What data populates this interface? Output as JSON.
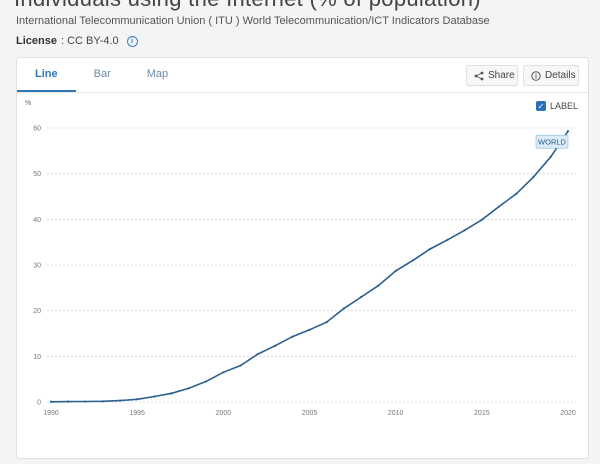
{
  "page": {
    "title": "Individuals using the Internet (% of population)",
    "source": "International Telecommunication Union ( ITU ) World Telecommunication/ICT Indicators Database",
    "license_label": "License",
    "license_value": " : CC BY-4.0"
  },
  "tabs": [
    {
      "label": "Line",
      "active": true
    },
    {
      "label": "Bar",
      "active": false
    },
    {
      "label": "Map",
      "active": false
    }
  ],
  "toolbar": {
    "share_label": "Share",
    "details_label": "Details",
    "label_toggle": "LABEL",
    "label_checked": true
  },
  "icons": {
    "share": "share-icon",
    "details": "info-icon",
    "license_info": "info-icon"
  },
  "colors": {
    "accent": "#2f78b6",
    "line": "#2a5f8f",
    "label_bg": "#d9ecf7"
  },
  "chart_data": {
    "type": "line",
    "ylabel": "%",
    "ylim": [
      0,
      60
    ],
    "xlim": [
      1990,
      2020
    ],
    "yticks": [
      0,
      10,
      20,
      30,
      40,
      50,
      60
    ],
    "xticks": [
      1990,
      1995,
      2000,
      2005,
      2010,
      2015,
      2020
    ],
    "grid": true,
    "series": [
      {
        "name": "WORLD",
        "label_shown": true,
        "x": [
          1990,
          1991,
          1992,
          1993,
          1994,
          1995,
          1996,
          1997,
          1998,
          1999,
          2000,
          2001,
          2002,
          2003,
          2004,
          2005,
          2006,
          2007,
          2008,
          2009,
          2010,
          2011,
          2012,
          2013,
          2014,
          2015,
          2016,
          2017,
          2018,
          2019,
          2020
        ],
        "values": [
          0.05,
          0.08,
          0.1,
          0.15,
          0.3,
          0.6,
          1.2,
          1.9,
          3.0,
          4.5,
          6.5,
          8.0,
          10.5,
          12.3,
          14.3,
          15.8,
          17.5,
          20.5,
          23.0,
          25.5,
          28.7,
          31.0,
          33.5,
          35.5,
          37.6,
          39.9,
          42.8,
          45.6,
          49.3,
          53.7,
          59.3
        ]
      }
    ]
  }
}
